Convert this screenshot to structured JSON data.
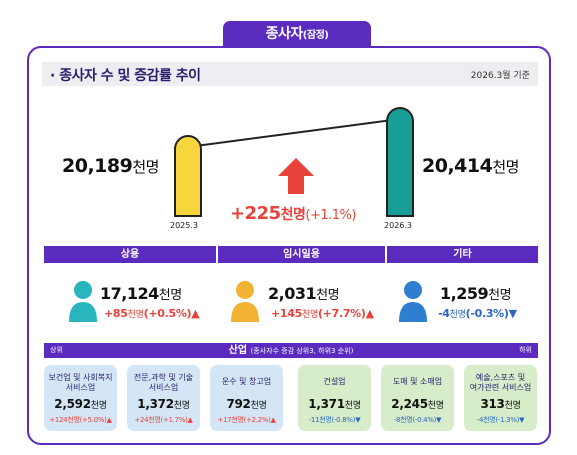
{
  "header": {
    "tab_title": "종사자",
    "tab_suffix": "(잠정)",
    "section_title": "· 종사자 수 및 증감률 추이",
    "reference_date": "2026.3월 기준"
  },
  "comparison": {
    "left": {
      "period": "2025.3",
      "value": "20,189",
      "unit": "천명"
    },
    "right": {
      "period": "2026.3",
      "value": "20,414",
      "unit": "천명"
    },
    "change": {
      "value": "+225",
      "unit": "천명",
      "percent": "(+1.1%)"
    },
    "colors": {
      "left_pillar": "#f6d63a",
      "right_pillar": "#199e97",
      "increase_arrow": "#e8433a"
    }
  },
  "categories": [
    {
      "label": "상용",
      "value": "17,124",
      "unit": "천명",
      "change": "+85",
      "change_unit": "천명",
      "change_pct": "(+0.5%)",
      "arrow": "▲",
      "direction": "up",
      "icon": "person-icon-teal",
      "color": "#28b5bd"
    },
    {
      "label": "임시일용",
      "value": "2,031",
      "unit": "천명",
      "change": "+145",
      "change_unit": "천명",
      "change_pct": "(+7.7%)",
      "arrow": "▲",
      "direction": "up",
      "icon": "person-icon-orange",
      "color": "#f2b233"
    },
    {
      "label": "기타",
      "value": "1,259",
      "unit": "천명",
      "change": "-4",
      "change_unit": "천명",
      "change_pct": "(-0.3%)",
      "arrow": "▼",
      "direction": "down",
      "icon": "person-icon-blue",
      "color": "#2f7fd0"
    }
  ],
  "industry": {
    "left_label": "상위",
    "title": "산업",
    "note": "(종사자수 증감 상위3, 하위3 순위)",
    "right_label": "하위",
    "items": [
      {
        "name_1": "보건업 및 사회복지",
        "name_2": "서비스업",
        "value": "2,592",
        "unit": "천명",
        "change": "+124천명(+5.0%)▲",
        "direction": "up",
        "group": "top"
      },
      {
        "name_1": "전문,과학 및 기술",
        "name_2": "서비스업",
        "value": "1,372",
        "unit": "천명",
        "change": "+24천명(+1.7%)▲",
        "direction": "up",
        "group": "top"
      },
      {
        "name_1": "운수 및 창고업",
        "name_2": "",
        "value": "792",
        "unit": "천명",
        "change": "+17천명(+2.2%)▲",
        "direction": "up",
        "group": "top"
      },
      {
        "name_1": "건설업",
        "name_2": "",
        "value": "1,371",
        "unit": "천명",
        "change": "-11천명(-0.8%)▼",
        "direction": "down",
        "group": "bottom"
      },
      {
        "name_1": "도매 및 소매업",
        "name_2": "",
        "value": "2,245",
        "unit": "천명",
        "change": "-8천명(-0.4%)▼",
        "direction": "down",
        "group": "bottom"
      },
      {
        "name_1": "예술,스포츠 및",
        "name_2": "여가관련 서비스업",
        "value": "313",
        "unit": "천명",
        "change": "-4천명(-1.3%)▼",
        "direction": "down",
        "group": "bottom"
      }
    ]
  }
}
